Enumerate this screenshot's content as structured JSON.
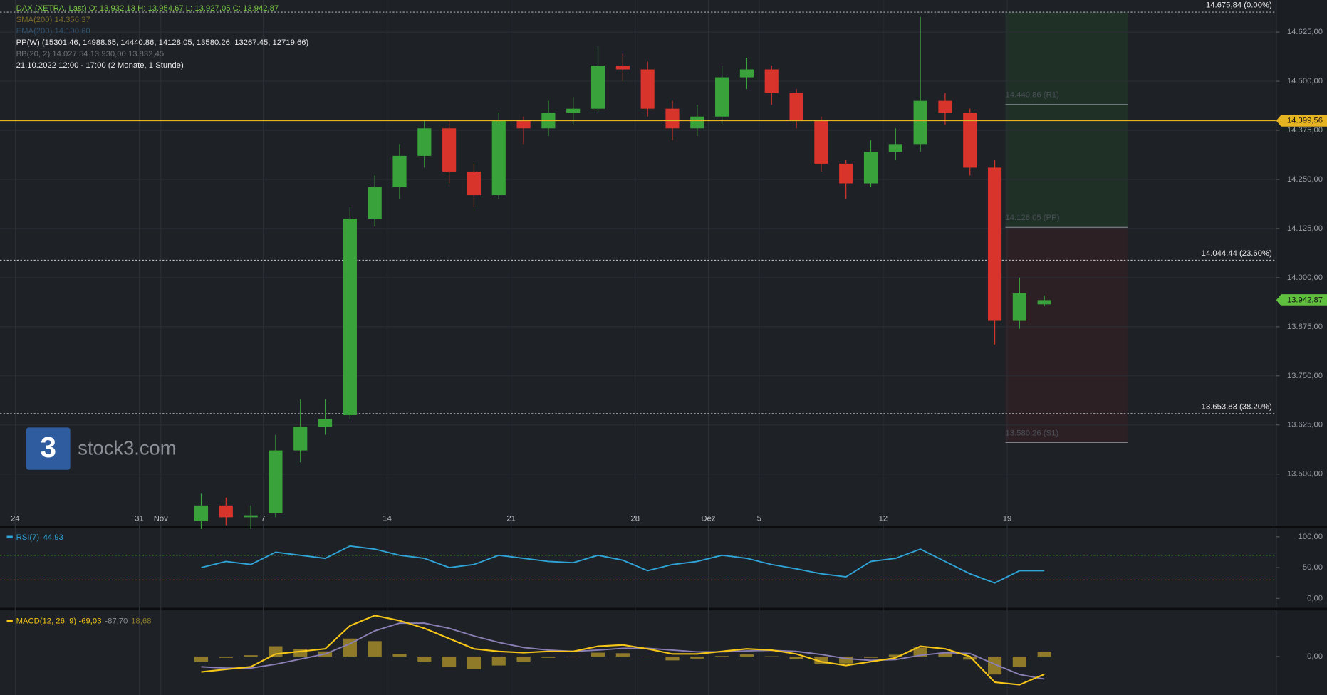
{
  "chart_data": {
    "type": "candlestick",
    "header": [
      {
        "text": "DAX (XETRA, Last)   O: 13.932,13   H: 13.954,67   L: 13.927,05   C: 13.942,87",
        "color": "#7ac943"
      },
      {
        "text": "SMA(200)  14.356,37",
        "color": "#7a6a2a"
      },
      {
        "text": "EMA(200)  14.190,60",
        "color": "#2f4f6a"
      },
      {
        "text": "PP(W)  (15301.46, 14988.65, 14440.86, 14128.05, 13580.26, 13267.45, 12719.66)",
        "color": "#e8e8e8"
      },
      {
        "text": "BB(20, 2)  14.027,54  13.930,00  13.832,45",
        "color": "#6e7278"
      },
      {
        "text": "21.10.2022 12:00 - 17:00   (2 Monate, 1 Stunde)",
        "color": "#e8e8e8"
      }
    ],
    "watermark": "stock3.com",
    "logo": "3",
    "x": [
      7.5,
      8.5,
      9.5,
      10.5,
      11.5,
      12.5,
      13.5,
      14.5,
      15.5,
      16.5,
      17.5,
      18.5,
      19.5,
      20.5,
      21.5,
      22.5,
      23.5,
      24.5,
      25.5,
      26.5,
      27.5,
      28.5,
      29.5,
      30.5,
      31.5,
      32.5,
      33.5,
      34.5,
      35.5,
      36.5,
      37.5,
      38.5,
      39.5,
      40.5,
      41.5
    ],
    "xlim": [
      -0.614,
      50.85
    ],
    "xticks": [
      {
        "value": 0,
        "label": "24"
      },
      {
        "value": 5,
        "label": "31"
      },
      {
        "value": 5.87,
        "label": "Nov"
      },
      {
        "value": 10,
        "label": "7"
      },
      {
        "value": 15,
        "label": "14"
      },
      {
        "value": 20,
        "label": "21"
      },
      {
        "value": 25,
        "label": "28"
      },
      {
        "value": 27.95,
        "label": "Dez"
      },
      {
        "value": 30,
        "label": "5"
      },
      {
        "value": 35,
        "label": "12"
      },
      {
        "value": 40,
        "label": "19"
      }
    ],
    "open": [
      13380,
      13420,
      13390,
      13400,
      13560,
      13620,
      13650,
      14150,
      14230,
      14310,
      14380,
      14270,
      14210,
      14400,
      14380,
      14420,
      14430,
      14540,
      14530,
      14430,
      14380,
      14410,
      14510,
      14530,
      14470,
      14400,
      14290,
      14240,
      14320,
      14340,
      14450,
      14420,
      14280,
      13890,
      13932.13
    ],
    "high": [
      13450,
      13440,
      13420,
      13600,
      13690,
      13690,
      14180,
      14260,
      14340,
      14400,
      14400,
      14290,
      14420,
      14410,
      14450,
      14460,
      14590,
      14570,
      14550,
      14450,
      14440,
      14540,
      14560,
      14540,
      14480,
      14410,
      14300,
      14350,
      14380,
      14664,
      14470,
      14430,
      14300,
      14000,
      13954.67
    ],
    "low": [
      13360,
      13370,
      13360,
      13390,
      13530,
      13600,
      13640,
      14130,
      14200,
      14280,
      14240,
      14180,
      14200,
      14340,
      14360,
      14390,
      14420,
      14500,
      14410,
      14350,
      14360,
      14390,
      14480,
      14440,
      14380,
      14270,
      14200,
      14230,
      14300,
      14320,
      14390,
      14260,
      13830,
      13870,
      13927.05
    ],
    "close": [
      13420,
      13390,
      13395,
      13560,
      13620,
      13640,
      14150,
      14230,
      14310,
      14380,
      14270,
      14210,
      14400,
      14380,
      14420,
      14430,
      14540,
      14530,
      14430,
      14380,
      14410,
      14510,
      14530,
      14470,
      14400,
      14290,
      14240,
      14320,
      14340,
      14450,
      14420,
      14280,
      13890,
      13960,
      13942.87
    ],
    "up_color": "#3aa23a",
    "down_color": "#d9342b",
    "ylim": [
      13368.5,
      14706.8
    ],
    "yticks": [
      {
        "value": 13500,
        "label": "13.500,00"
      },
      {
        "value": 13625,
        "label": "13.625,00"
      },
      {
        "value": 13750,
        "label": "13.750,00"
      },
      {
        "value": 13875,
        "label": "13.875,00"
      },
      {
        "value": 14000,
        "label": "14.000,00"
      },
      {
        "value": 14125,
        "label": "14.125,00"
      },
      {
        "value": 14250,
        "label": "14.250,00"
      },
      {
        "value": 14375,
        "label": "14.375,00"
      },
      {
        "value": 14500,
        "label": "14.500,00"
      },
      {
        "value": 14625,
        "label": "14.625,00"
      }
    ],
    "grid": true,
    "fib_levels": [
      {
        "value": 14675.84,
        "label": "14.675,84 (0.00%)"
      },
      {
        "value": 14044.44,
        "label": "14.044,44 (23.60%)"
      },
      {
        "value": 13653.83,
        "label": "13.653,83 (38.20%)"
      }
    ],
    "pivots": [
      {
        "value": 14440.86,
        "label": "14.440,86 (R1)"
      },
      {
        "value": 14128.05,
        "label": "14.128,05 (PP)"
      },
      {
        "value": 13580.26,
        "label": "13.580,26 (S1)"
      }
    ],
    "price_tags": [
      {
        "value": 14399.56,
        "label": "14.399,56",
        "color": "#e6b422"
      },
      {
        "value": 13942.87,
        "label": "13.942,87",
        "color": "#5fbf3f"
      }
    ],
    "rsi": {
      "title": "RSI(7)",
      "current": "44,93",
      "color": "#2fa3d6",
      "values": [
        50,
        60,
        55,
        75,
        70,
        65,
        85,
        80,
        70,
        65,
        50,
        55,
        70,
        65,
        60,
        58,
        70,
        62,
        45,
        55,
        60,
        70,
        65,
        55,
        48,
        40,
        35,
        60,
        65,
        80,
        60,
        40,
        25,
        45,
        44.93
      ],
      "ylim": [
        -15.3,
        113.9
      ],
      "yticks": [
        {
          "value": 0,
          "label": "0,00"
        },
        {
          "value": 50,
          "label": "50,00"
        },
        {
          "value": 100,
          "label": "100,00"
        }
      ],
      "levels": [
        70,
        30
      ]
    },
    "macd": {
      "title": "MACD(12, 26, 9)",
      "current": [
        "-69,03",
        "-87,70",
        "18,68"
      ],
      "macd_color": "#f5c518",
      "signal_color": "#8a7fb5",
      "hist_color": "#8f7a2a",
      "macd": [
        -60,
        -50,
        -40,
        10,
        20,
        30,
        120,
        160,
        140,
        110,
        70,
        30,
        20,
        15,
        20,
        20,
        40,
        45,
        30,
        10,
        10,
        20,
        30,
        25,
        10,
        -20,
        -35,
        -20,
        -5,
        40,
        30,
        0,
        -100,
        -110,
        -69.03
      ],
      "signal": [
        -40,
        -45,
        -45,
        -30,
        -10,
        10,
        50,
        100,
        130,
        130,
        110,
        80,
        55,
        35,
        25,
        20,
        25,
        32,
        32,
        25,
        18,
        18,
        22,
        24,
        20,
        8,
        -8,
        -15,
        -12,
        5,
        15,
        12,
        -30,
        -70,
        -87.7
      ],
      "histogram": [
        -20,
        -5,
        5,
        40,
        30,
        20,
        70,
        60,
        10,
        -20,
        -40,
        -50,
        -35,
        -20,
        -5,
        0,
        15,
        13,
        -2,
        -15,
        -8,
        2,
        8,
        1,
        -10,
        -28,
        -27,
        -5,
        7,
        35,
        15,
        -12,
        -70,
        -40,
        18.68
      ],
      "ylim": [
        -150,
        180
      ],
      "yticks": [
        {
          "value": 0,
          "label": "0,00"
        }
      ]
    }
  }
}
